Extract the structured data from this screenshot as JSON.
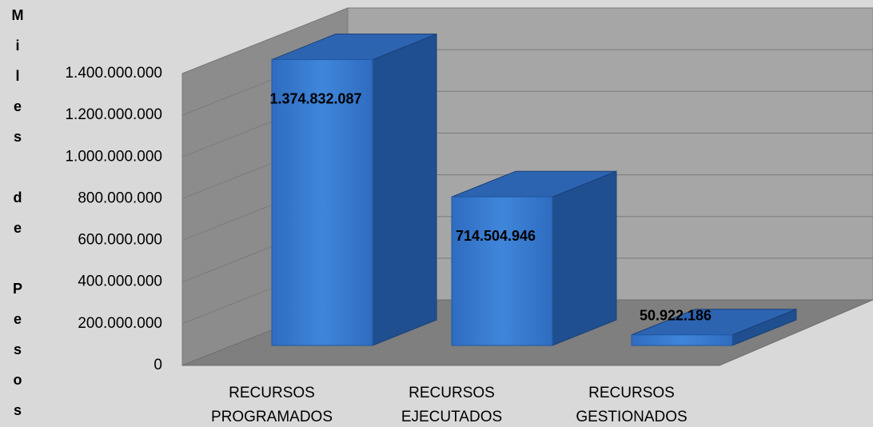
{
  "chart_data": {
    "type": "bar3d",
    "y_label": "Miles de Pesos",
    "categories": [
      "RECURSOS PROGRAMADOS",
      "RECURSOS EJECUTADOS",
      "RECURSOS GESTIONADOS"
    ],
    "values": [
      1374832087,
      714504946,
      50922186
    ],
    "value_labels": [
      "1.374.832.087",
      "714.504.946",
      "50.922.186"
    ],
    "color": "#3a7fd4",
    "ylim": [
      0,
      1400000000
    ],
    "yticks": [
      0,
      {
        "value": 200000000,
        "label": "200.000.000"
      },
      {
        "value": 400000000,
        "label": "400.000.000"
      },
      {
        "value": 600000000,
        "label": "600.000.000"
      },
      {
        "value": 800000000,
        "label": "800.000.000"
      },
      {
        "value": 1000000000,
        "label": "1.000.000.000"
      },
      {
        "value": 1200000000,
        "label": "1.200.000.000"
      },
      {
        "value": 1400000000,
        "label": "1.400.000.000"
      }
    ],
    "grid": true
  }
}
